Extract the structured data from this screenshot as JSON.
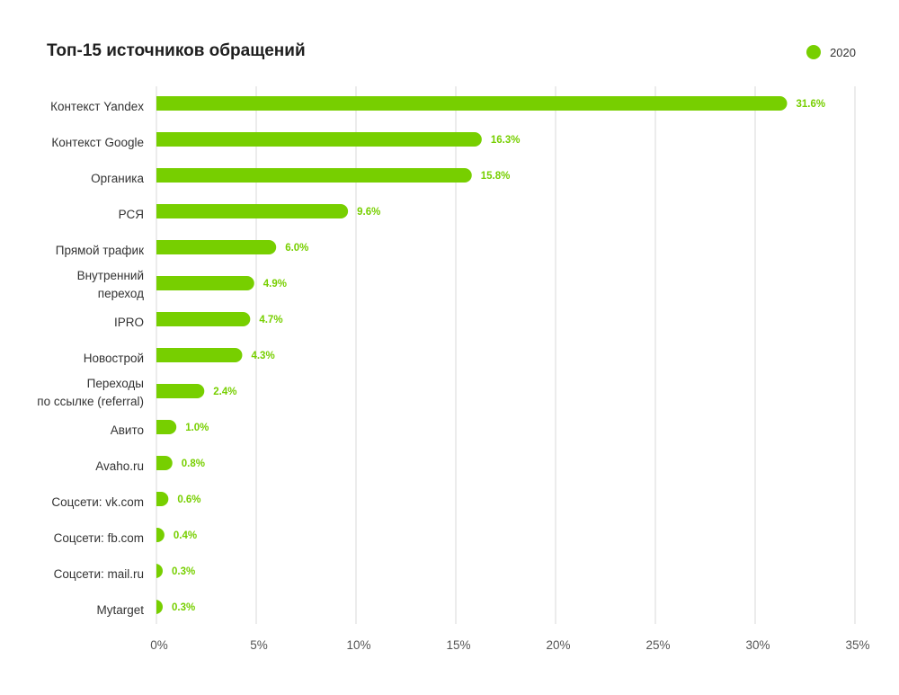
{
  "chart_data": {
    "type": "bar",
    "orientation": "horizontal",
    "title": "Топ-15 источников обращений",
    "categories": [
      [
        "Контекст Yandex"
      ],
      [
        "Контекст Google"
      ],
      [
        "Органика"
      ],
      [
        "РСЯ"
      ],
      [
        "Прямой трафик"
      ],
      [
        "Внутренний",
        "переход"
      ],
      [
        "IPRO"
      ],
      [
        "Новострой"
      ],
      [
        "Переходы",
        "по ссылке (referral)"
      ],
      [
        "Авито"
      ],
      [
        "Avaho.ru"
      ],
      [
        "Соцсети: vk.com"
      ],
      [
        "Соцсети: fb.com"
      ],
      [
        "Соцсети: mail.ru"
      ],
      [
        "Mytarget"
      ]
    ],
    "series": [
      {
        "name": "2020",
        "values": [
          31.6,
          16.3,
          15.8,
          9.6,
          6.0,
          4.9,
          4.7,
          4.3,
          2.4,
          1.0,
          0.8,
          0.6,
          0.4,
          0.3,
          0.3
        ],
        "labels": [
          "31.6%",
          "16.3%",
          "15.8%",
          "9.6%",
          "6.0%",
          "4.9%",
          "4.7%",
          "4.3%",
          "2.4%",
          "1.0%",
          "0.8%",
          "0.6%",
          "0.4%",
          "0.3%",
          "0.3%"
        ]
      }
    ],
    "xlim": [
      0,
      35
    ],
    "xticks": [
      0,
      5,
      10,
      15,
      20,
      25,
      30,
      35
    ],
    "xtick_labels": [
      "0%",
      "5%",
      "10%",
      "15%",
      "20%",
      "25%",
      "30%",
      "35%"
    ],
    "grid": true,
    "legend_position": "top-right"
  },
  "colors": {
    "bar": "#77cf00",
    "grid": "#e6e6e6"
  }
}
